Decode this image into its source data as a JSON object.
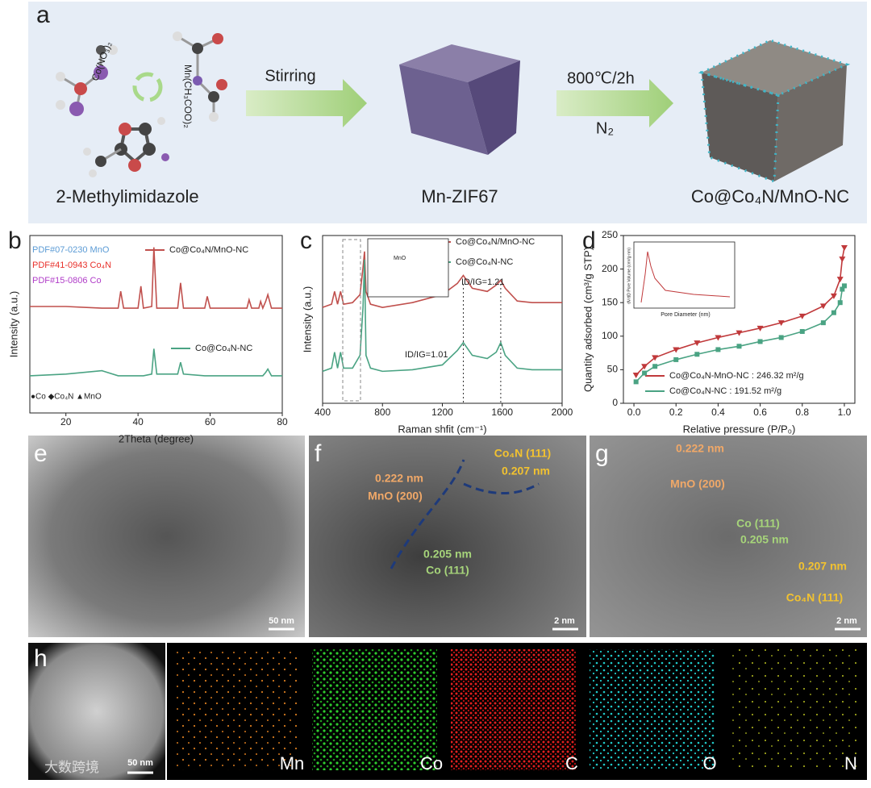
{
  "panel_a": {
    "label": "a",
    "reagents": [
      "Co(NO₃)₂",
      "Mn(CH₃COO)₂"
    ],
    "step1": "Stirring",
    "step2_temp": "800℃/2h",
    "step2_gas": "N₂",
    "captions": [
      "2-Methylimidazole",
      "Mn-ZIF67",
      "Co@Co₄N/MnO-NC"
    ]
  },
  "chart_data": [
    {
      "type": "line",
      "label": "b",
      "xlabel": "2Theta (degree)",
      "ylabel": "Intensity (a.u.)",
      "x": [
        10,
        20,
        30,
        34.5,
        35.2,
        36,
        40,
        40.8,
        41.5,
        43.8,
        44.4,
        45.2,
        51,
        51.8,
        52.6,
        58.5,
        59.2,
        60,
        70.2,
        70.8,
        71.5,
        73.5,
        74,
        74.6,
        75.4,
        76,
        77,
        80
      ],
      "series": [
        {
          "name": "Co@Co₄N/MnO-NC",
          "color": "#c0504d",
          "values": [
            63,
            63,
            62,
            62,
            72,
            62,
            62,
            75,
            62,
            63,
            98,
            62,
            62,
            77,
            62,
            62,
            69,
            62,
            62,
            67,
            62,
            62,
            66,
            62,
            66,
            70,
            62,
            62
          ]
        },
        {
          "name": "Co@Co₄N-NC",
          "color": "#4aa383",
          "values": [
            22,
            23,
            25,
            22,
            22,
            22,
            22,
            22,
            22,
            23,
            38,
            23,
            23,
            30,
            23,
            22,
            22,
            22,
            22,
            22,
            22,
            22,
            22,
            22,
            24,
            26,
            22,
            22
          ]
        }
      ],
      "references": [
        {
          "name": "PDF#07-0230 MnO",
          "color": "#5b9bd5"
        },
        {
          "name": "PDF#41-0943 Co₄N",
          "color": "#e8302a"
        },
        {
          "name": "PDF#15-0806 Co",
          "color": "#b03cc8"
        }
      ],
      "marker_key": "●Co ◆Co₄N ▲MnO",
      "xlim": [
        10,
        80
      ],
      "xticks": [
        20,
        40,
        60,
        80
      ],
      "ylim": [
        0,
        105
      ]
    },
    {
      "type": "line",
      "label": "c",
      "xlabel": "Raman shfit (cm⁻¹)",
      "ylabel": "Intensity (a.u.)",
      "x": [
        400,
        460,
        480,
        500,
        520,
        540,
        600,
        650,
        670,
        680,
        690,
        720,
        800,
        1000,
        1200,
        1300,
        1340,
        1400,
        1500,
        1560,
        1590,
        1620,
        1700,
        1800,
        2000
      ],
      "series": [
        {
          "name": "Co@Co₄N/MnO-NC",
          "color": "#c0504d",
          "values": [
            60,
            62,
            70,
            62,
            70,
            62,
            63,
            68,
            85,
            95,
            70,
            62,
            60,
            63,
            68,
            75,
            80,
            72,
            70,
            74,
            77,
            72,
            64,
            63,
            63
          ]
        },
        {
          "name": "Co@Co₄N-NC",
          "color": "#4aa383",
          "values": [
            20,
            22,
            32,
            22,
            32,
            22,
            22,
            30,
            60,
            90,
            30,
            22,
            20,
            21,
            24,
            33,
            38,
            30,
            28,
            32,
            38,
            30,
            22,
            21,
            21
          ]
        }
      ],
      "annotations": [
        "ID/IG=1.21",
        "ID/IG=1.01"
      ],
      "inset_label": "MnO",
      "xlim": [
        400,
        2000
      ],
      "xticks": [
        400,
        800,
        1200,
        1600,
        2000
      ],
      "ylim": [
        0,
        105
      ]
    },
    {
      "type": "line",
      "label": "d",
      "xlabel": "Relative pressure (P/P₀)",
      "ylabel": "Quantity adsorbed (cm³/g STP)",
      "x": [
        0.01,
        0.05,
        0.1,
        0.2,
        0.3,
        0.4,
        0.5,
        0.6,
        0.7,
        0.8,
        0.9,
        0.95,
        0.98,
        0.99,
        1.0
      ],
      "series": [
        {
          "name": "Co@Co₄N-MnO-NC : 246.32 m²/g",
          "color": "#c0393b",
          "values": [
            42,
            55,
            68,
            80,
            90,
            98,
            105,
            112,
            120,
            130,
            145,
            160,
            185,
            215,
            232
          ]
        },
        {
          "name": "Co@Co₄N-NC : 191.52 m²/g",
          "color": "#4aa383",
          "values": [
            32,
            45,
            55,
            65,
            73,
            80,
            85,
            92,
            98,
            107,
            120,
            135,
            150,
            170,
            175
          ]
        }
      ],
      "inset": {
        "xlabel": "Pore Diameter (nm)",
        "ylabel": "dV/dD Pore Volume (cm³/g·nm)"
      },
      "xlim": [
        -0.05,
        1.05
      ],
      "xticks": [
        {
          "value": 0,
          "label": "0.0"
        },
        0.2,
        0.4,
        0.6,
        0.8,
        {
          "value": 1,
          "label": "1.0"
        }
      ],
      "ylim": [
        0,
        250
      ],
      "yticks": [
        0,
        50,
        100,
        150,
        200,
        250
      ]
    }
  ],
  "tem_panels": [
    {
      "label": "e",
      "scale": "50 nm"
    },
    {
      "label": "f",
      "annotations": [
        "0.222 nm",
        "MnO (200)",
        "Co₄N (111)",
        "0.207 nm",
        "0.205 nm",
        "Co (111)"
      ],
      "scale": "2 nm"
    },
    {
      "label": "g",
      "annotations": [
        "0.222 nm",
        "MnO (200)",
        "Co (111)",
        "0.205 nm",
        "0.207 nm",
        "Co₄N (111)"
      ],
      "scale": "2 nm"
    }
  ],
  "mapping": {
    "label": "h",
    "scale": "50 nm",
    "elements": [
      "Mn",
      "Co",
      "C",
      "O",
      "N"
    ]
  },
  "watermark": "大数跨境"
}
